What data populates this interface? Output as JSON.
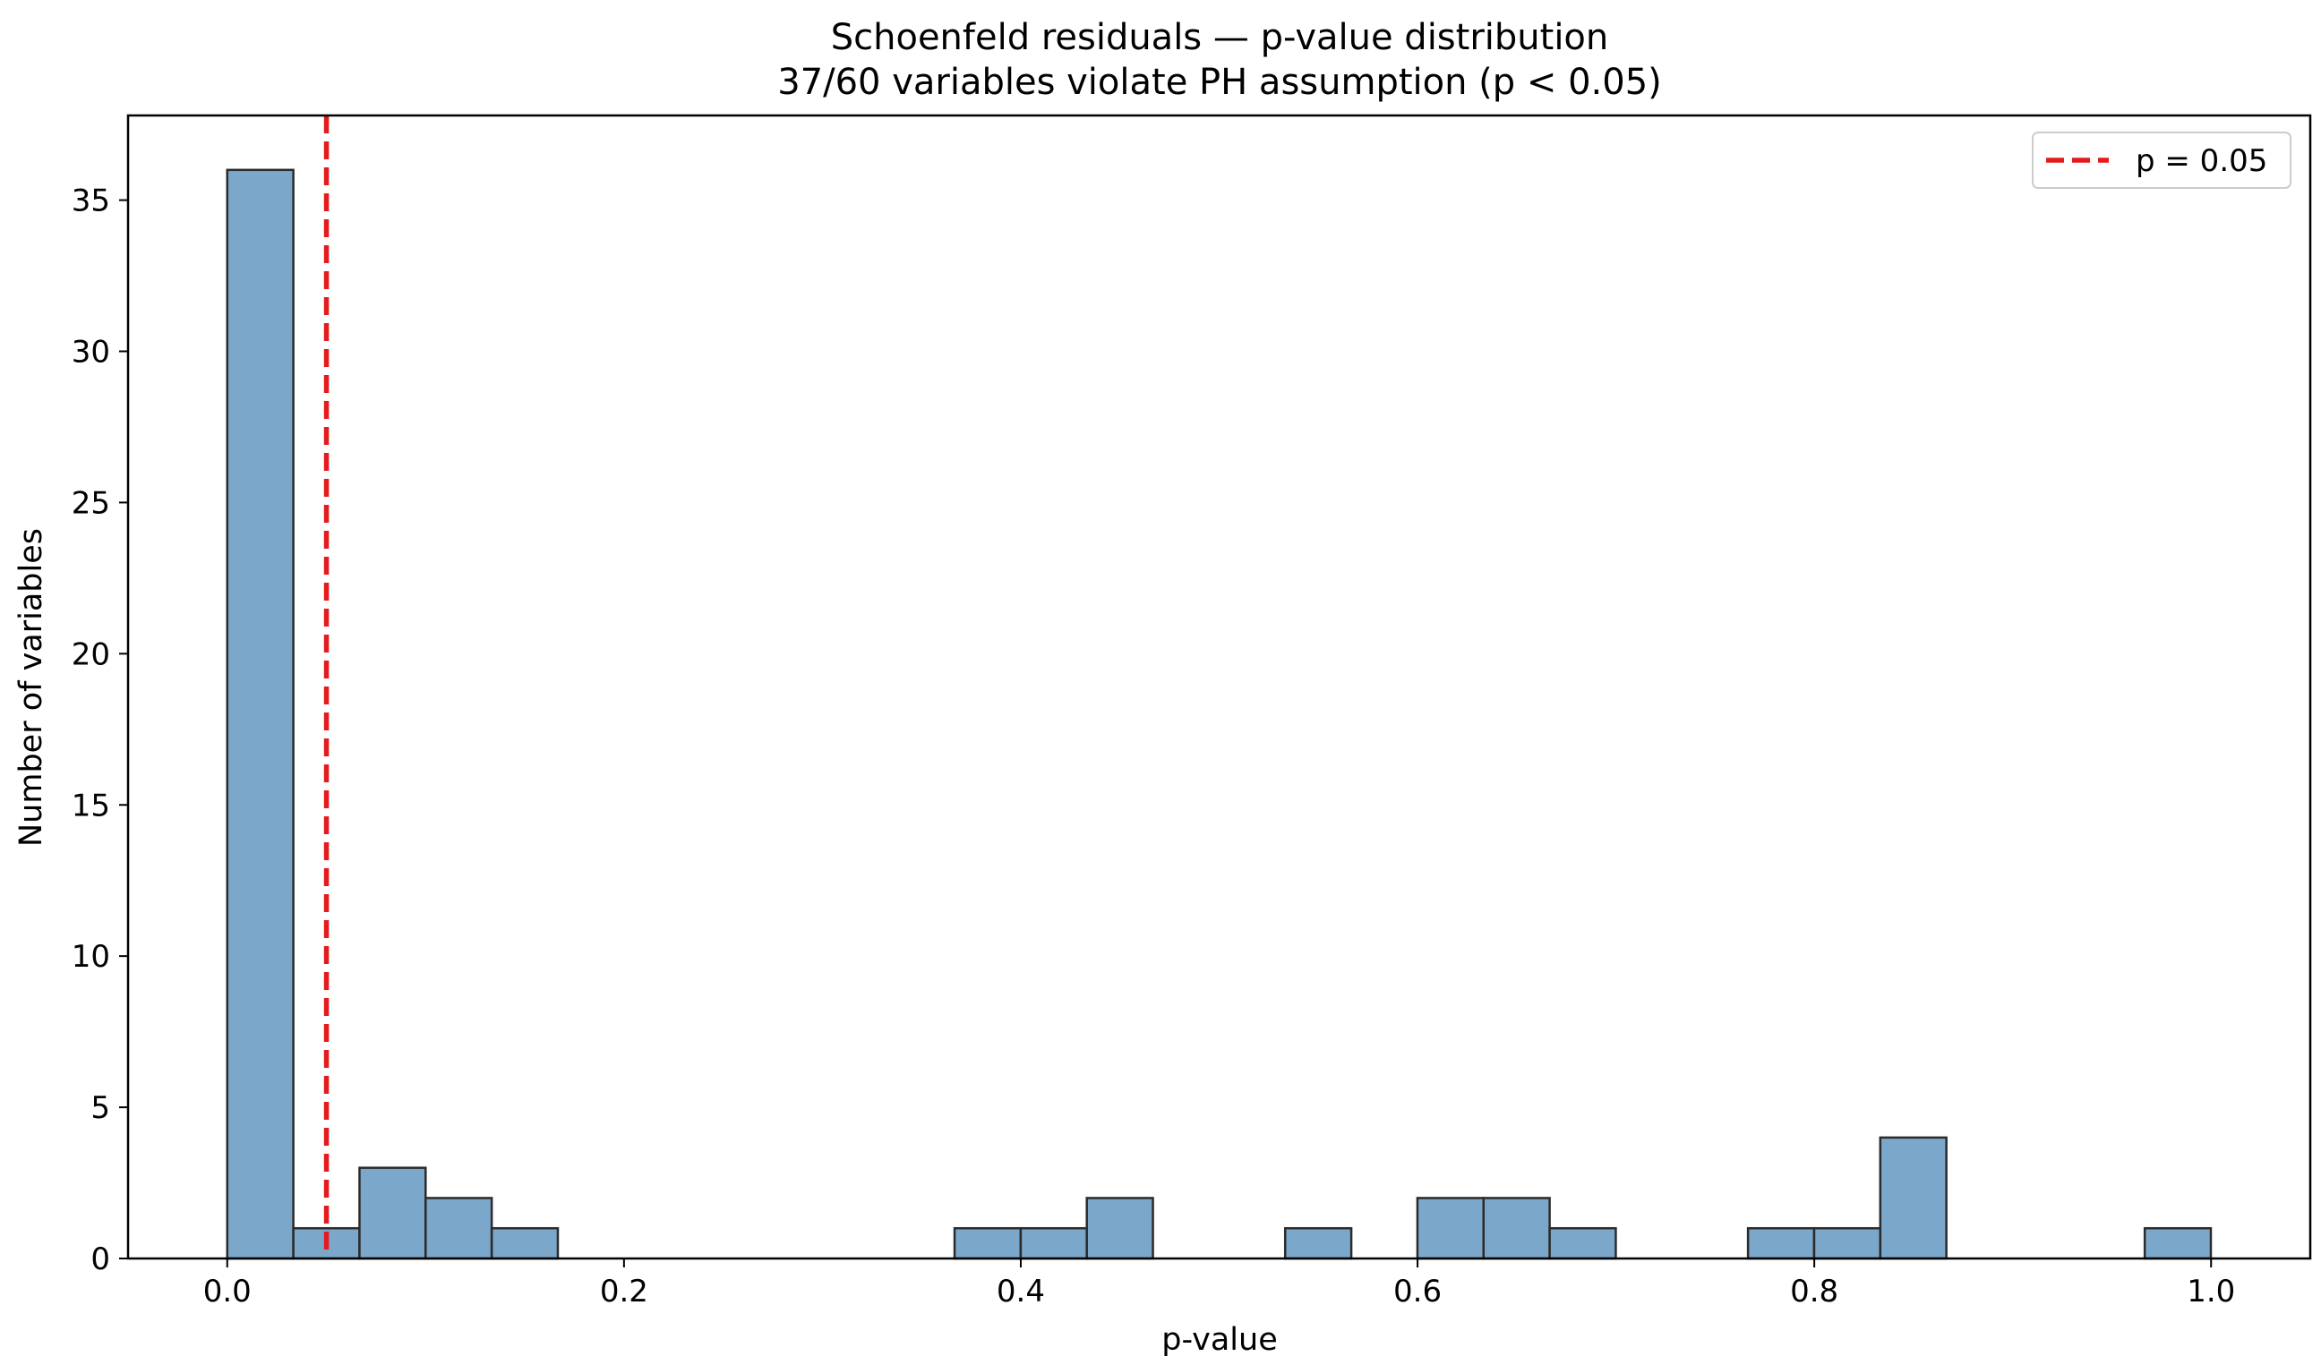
{
  "chart_data": {
    "type": "bar",
    "title": "Schoenfeld residuals — p-value distribution",
    "subtitle": "37/60 variables violate PH assumption (p < 0.05)",
    "xlabel": "p-value",
    "ylabel": "Number of variables",
    "xlim": [
      -0.05,
      1.05
    ],
    "ylim": [
      0,
      37.8
    ],
    "x_ticks": [
      0.0,
      0.2,
      0.4,
      0.6,
      0.8,
      1.0
    ],
    "x_tick_labels": [
      "0.0",
      "0.2",
      "0.4",
      "0.6",
      "0.8",
      "1.0"
    ],
    "y_ticks": [
      0,
      5,
      10,
      15,
      20,
      25,
      30,
      35
    ],
    "y_tick_labels": [
      "0",
      "5",
      "10",
      "15",
      "20",
      "25",
      "30",
      "35"
    ],
    "grid": false,
    "bins": {
      "start": 0.0,
      "width": 0.03333,
      "counts": [
        36,
        1,
        3,
        2,
        1,
        0,
        0,
        0,
        0,
        0,
        0,
        1,
        1,
        2,
        0,
        0,
        1,
        0,
        2,
        2,
        1,
        0,
        0,
        1,
        1,
        4,
        0,
        0,
        0,
        1
      ]
    },
    "reference_line": {
      "x": 0.05,
      "label": "p = 0.05",
      "color": "#e41a1c",
      "style": "dashed"
    },
    "legend": {
      "position": "top-right",
      "entries": [
        "p = 0.05"
      ]
    },
    "colors": {
      "bar_fill": "#7ba7cb",
      "bar_edge": "#2b2b2b",
      "threshold": "#e41a1c"
    }
  }
}
